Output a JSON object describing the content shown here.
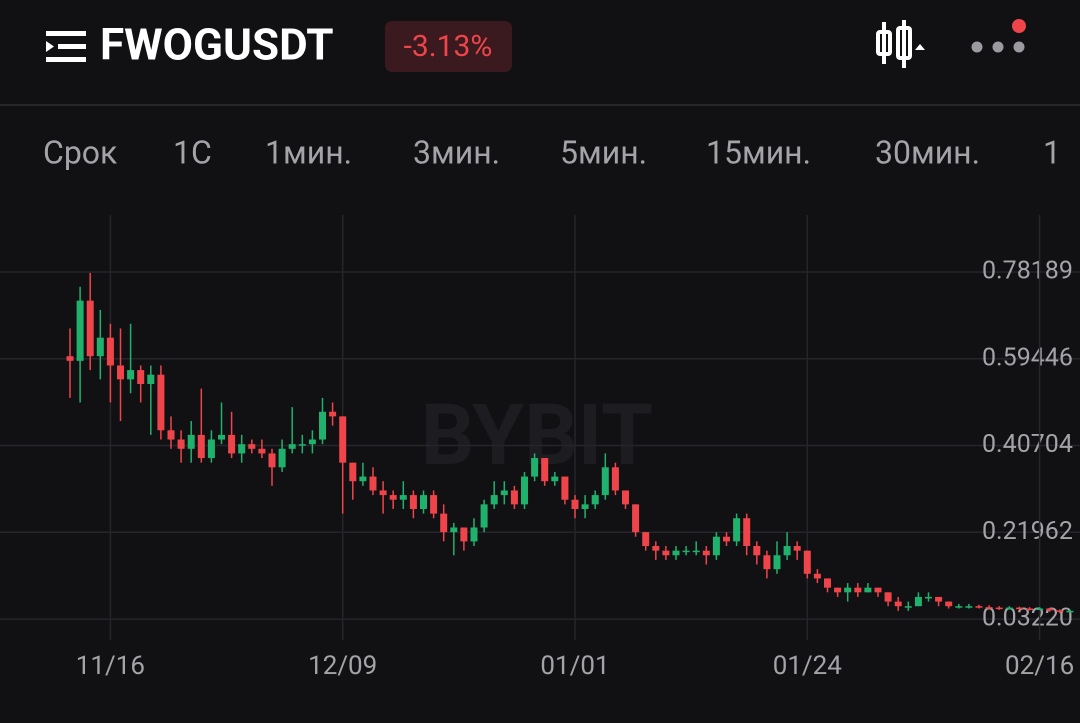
{
  "header": {
    "symbol": "FWOGUSDT",
    "change": "-3.13%"
  },
  "tabs": [
    "Срок",
    "1С",
    "1мин.",
    "3мин.",
    "5мин.",
    "15мин.",
    "30мин.",
    "1"
  ],
  "watermark": "BYBIT",
  "chart_data": {
    "type": "candlestick",
    "categories": [
      null,
      null,
      null,
      null,
      "11/16",
      null,
      null,
      null,
      null,
      null,
      null,
      null,
      null,
      null,
      null,
      null,
      null,
      null,
      null,
      null,
      null,
      null,
      null,
      null,
      null,
      null,
      null,
      "12/09",
      null,
      null,
      null,
      null,
      null,
      null,
      null,
      null,
      null,
      null,
      null,
      null,
      null,
      null,
      null,
      null,
      null,
      null,
      null,
      null,
      null,
      null,
      "01/01",
      null,
      null,
      null,
      null,
      null,
      null,
      null,
      null,
      null,
      null,
      null,
      null,
      null,
      null,
      null,
      null,
      null,
      null,
      null,
      null,
      null,
      null,
      "01/24",
      null,
      null,
      null,
      null,
      null,
      null,
      null,
      null,
      null,
      null,
      null,
      null,
      null,
      null,
      null,
      null,
      null,
      null,
      null,
      null,
      null,
      null,
      "02/16",
      null,
      null,
      null
    ],
    "open": [
      0.6,
      0.59,
      0.72,
      0.6,
      0.64,
      0.58,
      0.55,
      0.57,
      0.54,
      0.56,
      0.44,
      0.42,
      0.4,
      0.43,
      0.38,
      0.42,
      0.43,
      0.39,
      0.41,
      0.4,
      0.39,
      0.36,
      0.4,
      0.41,
      0.41,
      0.42,
      0.48,
      0.47,
      0.37,
      0.33,
      0.34,
      0.31,
      0.3,
      0.29,
      0.3,
      0.27,
      0.3,
      0.26,
      0.22,
      0.23,
      0.2,
      0.23,
      0.28,
      0.3,
      0.31,
      0.28,
      0.34,
      0.38,
      0.33,
      0.34,
      0.29,
      0.27,
      0.28,
      0.3,
      0.36,
      0.31,
      0.28,
      0.22,
      0.19,
      0.18,
      0.17,
      0.18,
      0.18,
      0.18,
      0.17,
      0.21,
      0.2,
      0.25,
      0.19,
      0.17,
      0.14,
      0.17,
      0.19,
      0.18,
      0.13,
      0.12,
      0.1,
      0.09,
      0.1,
      0.09,
      0.1,
      0.09,
      0.07,
      0.06,
      0.06,
      0.08,
      0.08,
      0.07,
      0.06,
      0.06,
      0.06,
      0.058,
      0.057,
      0.055,
      0.057,
      0.055,
      0.054,
      0.055,
      0.051,
      0.048
    ],
    "high": [
      0.66,
      0.75,
      0.78,
      0.7,
      0.67,
      0.66,
      0.67,
      0.58,
      0.58,
      0.58,
      0.47,
      0.44,
      0.46,
      0.53,
      0.44,
      0.5,
      0.48,
      0.43,
      0.42,
      0.42,
      0.4,
      0.42,
      0.49,
      0.43,
      0.44,
      0.51,
      0.5,
      0.47,
      0.37,
      0.37,
      0.36,
      0.33,
      0.31,
      0.33,
      0.31,
      0.31,
      0.31,
      0.28,
      0.24,
      0.23,
      0.25,
      0.29,
      0.33,
      0.33,
      0.32,
      0.35,
      0.39,
      0.38,
      0.35,
      0.34,
      0.3,
      0.3,
      0.31,
      0.39,
      0.37,
      0.31,
      0.28,
      0.22,
      0.2,
      0.19,
      0.19,
      0.19,
      0.2,
      0.19,
      0.22,
      0.22,
      0.26,
      0.26,
      0.2,
      0.18,
      0.2,
      0.22,
      0.2,
      0.18,
      0.14,
      0.12,
      0.1,
      0.11,
      0.11,
      0.11,
      0.1,
      0.09,
      0.08,
      0.07,
      0.09,
      0.09,
      0.08,
      0.07,
      0.065,
      0.065,
      0.063,
      0.062,
      0.06,
      0.06,
      0.059,
      0.058,
      0.058,
      0.056,
      0.053,
      0.052
    ],
    "low": [
      0.51,
      0.5,
      0.57,
      0.55,
      0.5,
      0.46,
      0.52,
      0.5,
      0.43,
      0.42,
      0.4,
      0.37,
      0.37,
      0.37,
      0.37,
      0.41,
      0.38,
      0.37,
      0.39,
      0.38,
      0.32,
      0.35,
      0.39,
      0.39,
      0.39,
      0.41,
      0.45,
      0.26,
      0.29,
      0.32,
      0.3,
      0.26,
      0.27,
      0.27,
      0.25,
      0.26,
      0.25,
      0.2,
      0.17,
      0.18,
      0.19,
      0.22,
      0.27,
      0.28,
      0.27,
      0.27,
      0.33,
      0.32,
      0.32,
      0.28,
      0.25,
      0.25,
      0.27,
      0.29,
      0.3,
      0.27,
      0.21,
      0.18,
      0.16,
      0.16,
      0.16,
      0.17,
      0.17,
      0.15,
      0.16,
      0.19,
      0.19,
      0.17,
      0.15,
      0.12,
      0.13,
      0.16,
      0.16,
      0.12,
      0.11,
      0.09,
      0.08,
      0.07,
      0.08,
      0.09,
      0.08,
      0.06,
      0.05,
      0.05,
      0.06,
      0.07,
      0.06,
      0.055,
      0.055,
      0.055,
      0.055,
      0.054,
      0.052,
      0.053,
      0.052,
      0.051,
      0.052,
      0.048,
      0.045,
      0.046
    ],
    "close": [
      0.59,
      0.72,
      0.6,
      0.64,
      0.58,
      0.55,
      0.57,
      0.54,
      0.56,
      0.44,
      0.42,
      0.4,
      0.43,
      0.38,
      0.42,
      0.43,
      0.39,
      0.41,
      0.4,
      0.39,
      0.36,
      0.4,
      0.41,
      0.41,
      0.42,
      0.48,
      0.47,
      0.37,
      0.33,
      0.34,
      0.31,
      0.3,
      0.29,
      0.3,
      0.27,
      0.3,
      0.26,
      0.22,
      0.23,
      0.2,
      0.23,
      0.28,
      0.3,
      0.31,
      0.28,
      0.34,
      0.38,
      0.33,
      0.34,
      0.29,
      0.27,
      0.28,
      0.3,
      0.36,
      0.31,
      0.28,
      0.22,
      0.19,
      0.18,
      0.17,
      0.18,
      0.18,
      0.18,
      0.17,
      0.21,
      0.2,
      0.25,
      0.19,
      0.17,
      0.14,
      0.17,
      0.19,
      0.18,
      0.13,
      0.12,
      0.1,
      0.09,
      0.1,
      0.09,
      0.1,
      0.09,
      0.07,
      0.06,
      0.06,
      0.08,
      0.08,
      0.07,
      0.06,
      0.06,
      0.06,
      0.058,
      0.057,
      0.055,
      0.057,
      0.055,
      0.054,
      0.055,
      0.051,
      0.048,
      0.05
    ],
    "up_color": "#20b26c",
    "down_color": "#ef454a",
    "ylim": [
      -0.013,
      0.905
    ],
    "yticks": [
      {
        "value": 0.0322,
        "label": "0.03220"
      },
      0.21962,
      0.40704,
      0.59446,
      0.78189
    ],
    "grid": true
  }
}
